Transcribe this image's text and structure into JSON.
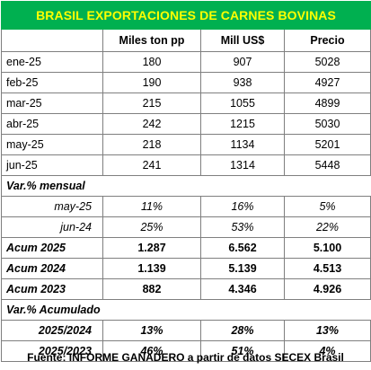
{
  "title": "BRASIL EXPORTACIONES DE CARNES BOVINAS",
  "headers": [
    "",
    "Miles ton pp",
    "Mill US$",
    "Precio"
  ],
  "monthly_rows": [
    [
      "ene-25",
      "180",
      "907",
      "5028"
    ],
    [
      "feb-25",
      "190",
      "938",
      "4927"
    ],
    [
      "mar-25",
      "215",
      "1055",
      "4899"
    ],
    [
      "abr-25",
      "242",
      "1215",
      "5030"
    ],
    [
      "may-25",
      "218",
      "1134",
      "5201"
    ],
    [
      "jun-25",
      "241",
      "1314",
      "5448"
    ]
  ],
  "section_var_mensual": "Var.% mensual",
  "var_mensual_rows": [
    [
      "may-25",
      "11%",
      "16%",
      "5%"
    ],
    [
      "jun-24",
      "25%",
      "53%",
      "22%"
    ]
  ],
  "acum_rows": [
    [
      "Acum 2025",
      "1.287",
      "6.562",
      "5.100"
    ],
    [
      "Acum 2024",
      "1.139",
      "5.139",
      "4.513"
    ],
    [
      "Acum 2023",
      "882",
      "4.346",
      "4.926"
    ]
  ],
  "section_var_acumulado": "Var.%  Acumulado",
  "var_acumulado_rows": [
    [
      "2025/2024",
      "13%",
      "28%",
      "13%"
    ],
    [
      "2025/2023",
      "46%",
      "51%",
      "4%"
    ]
  ],
  "source": "Fuente: INFORME GANADERO a partir de datos SECEX Brasil",
  "colors": {
    "title_bg": "#00b050",
    "title_text": "#ffff00"
  }
}
